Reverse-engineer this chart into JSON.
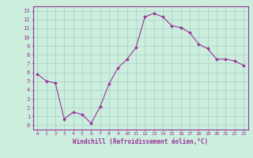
{
  "x": [
    0,
    1,
    2,
    3,
    4,
    5,
    6,
    7,
    8,
    9,
    10,
    11,
    12,
    13,
    14,
    15,
    16,
    17,
    18,
    19,
    20,
    21,
    22,
    23
  ],
  "y": [
    5.8,
    5.0,
    4.8,
    0.7,
    1.5,
    1.2,
    0.2,
    2.1,
    4.7,
    6.5,
    7.5,
    8.8,
    12.3,
    12.7,
    12.3,
    11.3,
    11.1,
    10.5,
    9.2,
    8.7,
    7.5,
    7.5,
    7.3,
    6.8
  ],
  "line_color": "#993399",
  "marker_color": "#993399",
  "bg_color": "#cceedd",
  "grid_color": "#aacccc",
  "xlabel": "Windchill (Refroidissement éolien,°C)",
  "xlabel_color": "#993399",
  "xlim": [
    -0.5,
    23.5
  ],
  "ylim": [
    -0.5,
    13.5
  ],
  "yticks": [
    0,
    1,
    2,
    3,
    4,
    5,
    6,
    7,
    8,
    9,
    10,
    11,
    12,
    13
  ],
  "xticks": [
    0,
    1,
    2,
    3,
    4,
    5,
    6,
    7,
    8,
    9,
    10,
    11,
    12,
    13,
    14,
    15,
    16,
    17,
    18,
    19,
    20,
    21,
    22,
    23
  ],
  "spine_color": "#993399"
}
